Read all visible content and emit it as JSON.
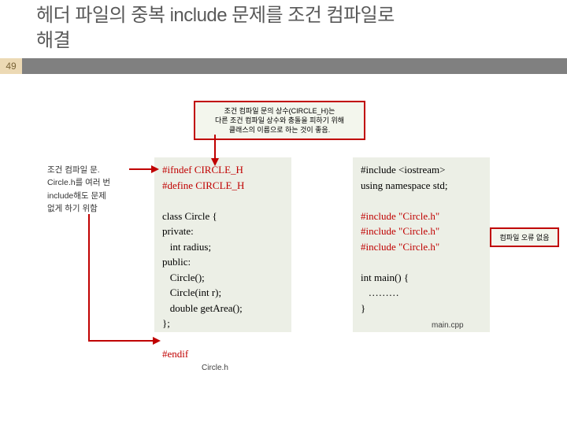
{
  "slide": {
    "title": "헤더 파일의 중복 include 문제를 조건 컴파일로\n해결",
    "number": "49"
  },
  "callout_top": "조건 컴파일 문의 상수(CIRCLE_H)는\n다른 조건 컴파일 상수와 충돌을 피하기 위해\n클래스의 이름으로 하는 것이 좋음.",
  "side_note": "조건 컴파일 문.\nCircle.h를 여러 번\ninclude해도 문제\n없게 하기 위함",
  "code_left": {
    "l1": "#ifndef CIRCLE_H",
    "l2": "#define CIRCLE_H",
    "blank1": "",
    "l3": "class Circle {",
    "l4": "private:",
    "l5": "   int radius;",
    "l6": "public:",
    "l7": "   Circle();",
    "l8": "   Circle(int r);",
    "l9": "   double getArea();",
    "l10": "};",
    "blank2": "",
    "l11": "#endif"
  },
  "code_right": {
    "l1": "#include <iostream>",
    "l2": "using namespace std;",
    "blank1": "",
    "l3": "#include \"Circle.h\"",
    "l4": "#include \"Circle.h\"",
    "l5": "#include \"Circle.h\"",
    "blank2": "",
    "l6": "int main() {",
    "l7": "   ………",
    "l8": "}"
  },
  "no_error": "컴파일 오류 없음",
  "filenames": {
    "left": "Circle.h",
    "right": "main.cpp"
  },
  "colors": {
    "title_text": "#595959",
    "slide_num_bg": "#ecd9b4",
    "slide_num_text": "#7a6437",
    "bar_bg": "#808080",
    "red": "#c00000",
    "code_bg": "#ecefe6",
    "callout_bg": "#f3f6ed"
  }
}
